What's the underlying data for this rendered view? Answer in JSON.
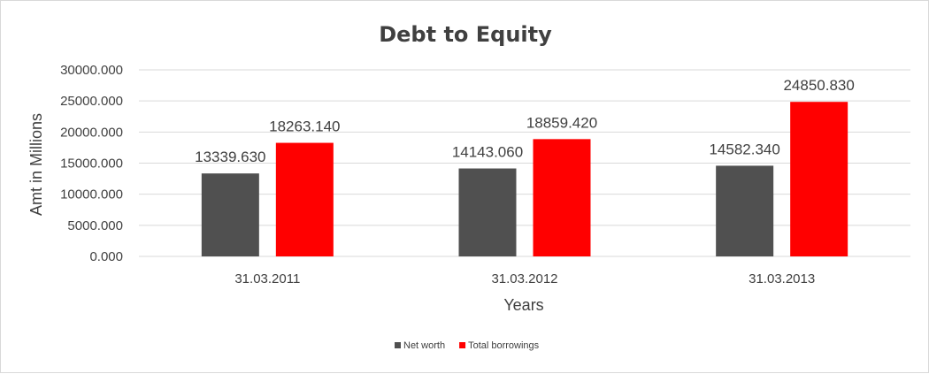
{
  "chart_data": {
    "type": "bar",
    "title": "Debt to Equity",
    "xlabel": "Years",
    "ylabel": "Amt in Millions",
    "categories": [
      "31.03.2011",
      "31.03.2012",
      "31.03.2013"
    ],
    "series": [
      {
        "name": "Net worth",
        "color": "#505050",
        "values": [
          13339.63,
          14143.06,
          14582.34
        ],
        "labels": [
          "13339.630",
          "14143.060",
          "14582.340"
        ]
      },
      {
        "name": "Total borrowings",
        "color": "#ff0000",
        "values": [
          18263.14,
          18859.42,
          24850.83
        ],
        "labels": [
          "18263.140",
          "18859.420",
          "24850.830"
        ]
      }
    ],
    "ylim": [
      0,
      30000
    ],
    "yticks": [
      0,
      5000,
      10000,
      15000,
      20000,
      25000,
      30000
    ],
    "ytick_labels": [
      "0.000",
      "5000.000",
      "10000.000",
      "15000.000",
      "20000.000",
      "25000.000",
      "30000.000"
    ],
    "grid": true,
    "gridline_color": "#d9d9d9",
    "legend_position": "bottom"
  }
}
